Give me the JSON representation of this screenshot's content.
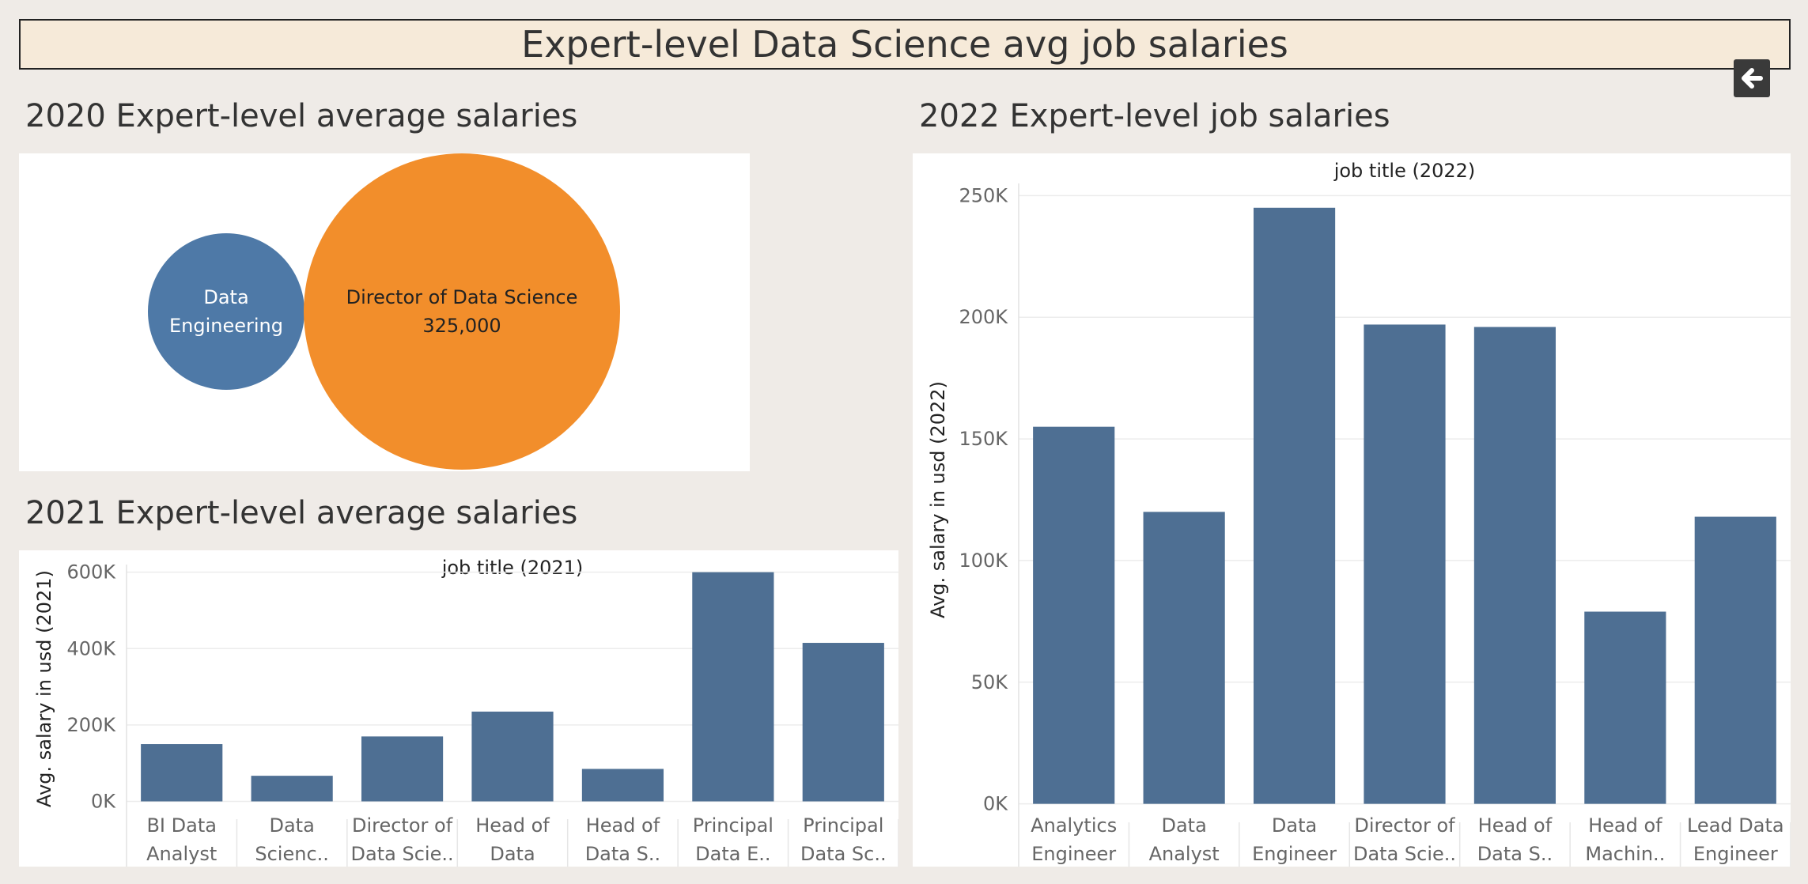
{
  "dashboard": {
    "title": "Expert-level Data Science avg job salaries",
    "back_button_icon": "arrow-left-icon"
  },
  "sections": {
    "s2020": "2020 Expert-level average salaries",
    "s2021": "2021 Expert-level average salaries",
    "s2022": "2022 Expert-level job salaries"
  },
  "chart_data": [
    {
      "id": "2020",
      "type": "bubble",
      "items": [
        {
          "label_lines": [
            "Data",
            "Engineering"
          ],
          "value": null,
          "color": "#4e79a7"
        },
        {
          "label_lines": [
            "Director of Data Science"
          ],
          "value_label": "325,000",
          "value": 325000,
          "color": "#f28e2b"
        }
      ]
    },
    {
      "id": "2021",
      "type": "bar",
      "title": "job title (2021)",
      "ylabel": "Avg. salary in usd (2021)",
      "ylim": [
        -30000,
        620000
      ],
      "yticks": [
        0,
        200000,
        400000,
        600000
      ],
      "ytick_labels": [
        "0K",
        "200K",
        "400K",
        "600K"
      ],
      "grid": true,
      "color": "#4e6f93",
      "categories": [
        [
          "BI Data",
          "Analyst"
        ],
        [
          "Data",
          "Scienc.."
        ],
        [
          "Director of",
          "Data Scie.."
        ],
        [
          "Head of",
          "Data"
        ],
        [
          "Head of",
          "Data S.."
        ],
        [
          "Principal",
          "Data E.."
        ],
        [
          "Principal",
          "Data Sc.."
        ]
      ],
      "values": [
        150000,
        67000,
        170000,
        235000,
        85000,
        600000,
        415000
      ]
    },
    {
      "id": "2022",
      "type": "bar",
      "title": "job title (2022)",
      "ylabel": "Avg. salary in usd (2022)",
      "ylim": [
        -5000,
        255000
      ],
      "yticks": [
        0,
        50000,
        100000,
        150000,
        200000,
        250000
      ],
      "ytick_labels": [
        "0K",
        "50K",
        "100K",
        "150K",
        "200K",
        "250K"
      ],
      "grid": true,
      "color": "#4e6f93",
      "categories": [
        [
          "Analytics",
          "Engineer"
        ],
        [
          "Data",
          "Analyst"
        ],
        [
          "Data",
          "Engineer"
        ],
        [
          "Director of",
          "Data Scie.."
        ],
        [
          "Head of",
          "Data S.."
        ],
        [
          "Head of",
          "Machin.."
        ],
        [
          "Lead Data",
          "Engineer"
        ]
      ],
      "values": [
        155000,
        120000,
        245000,
        197000,
        196000,
        79000,
        118000
      ]
    }
  ]
}
